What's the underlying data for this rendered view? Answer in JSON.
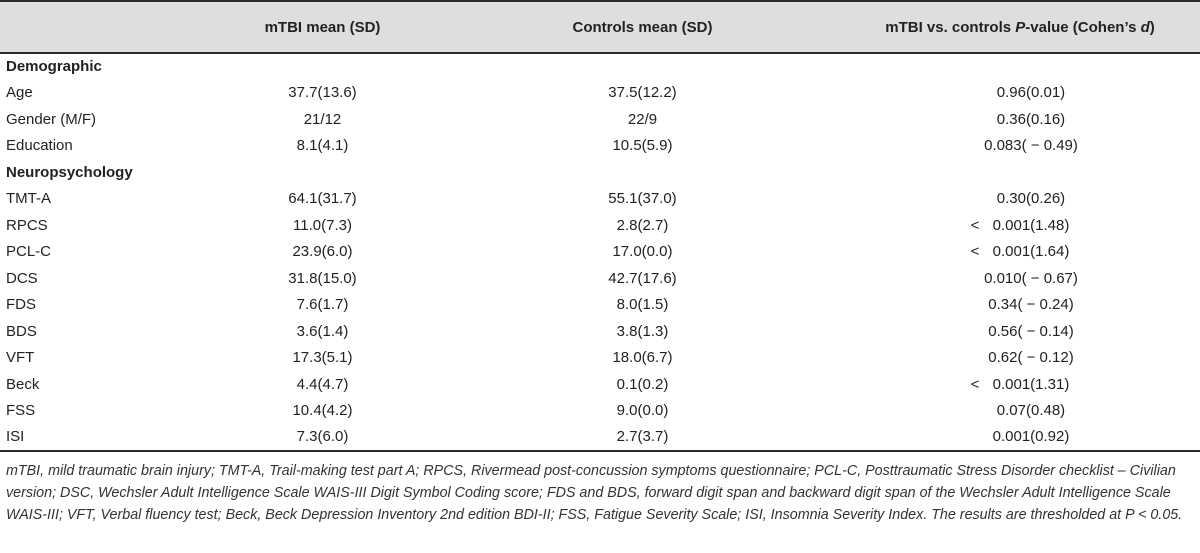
{
  "table": {
    "headers": [
      "",
      "mTBI mean (SD)",
      "Controls mean (SD)",
      "mTBI vs. controls P-value (Cohen’s d)"
    ],
    "header_p_prefix": "mTBI vs. controls ",
    "header_p_italic": "P",
    "header_p_mid": "-value (Cohen’s ",
    "header_p_italic2": "d",
    "header_p_suffix": ")",
    "sections": [
      {
        "title": "Demographic",
        "rows": [
          {
            "label": "Age",
            "mtbi": "37.7(13.6)",
            "controls": "37.5(12.2)",
            "p": "0.96(0.01)",
            "lt": ""
          },
          {
            "label": "Gender (M/F)",
            "mtbi": "21/12",
            "controls": "22/9",
            "p": "0.36(0.16)",
            "lt": ""
          },
          {
            "label": "Education",
            "mtbi": "8.1(4.1)",
            "controls": "10.5(5.9)",
            "p": "0.083( − 0.49)",
            "lt": ""
          }
        ]
      },
      {
        "title": "Neuropsychology",
        "rows": [
          {
            "label": "TMT-A",
            "mtbi": "64.1(31.7)",
            "controls": "55.1(37.0)",
            "p": "0.30(0.26)",
            "lt": ""
          },
          {
            "label": "RPCS",
            "mtbi": "11.0(7.3)",
            "controls": "2.8(2.7)",
            "p": "0.001(1.48)",
            "lt": "<"
          },
          {
            "label": "PCL-C",
            "mtbi": "23.9(6.0)",
            "controls": "17.0(0.0)",
            "p": "0.001(1.64)",
            "lt": "<"
          },
          {
            "label": "DCS",
            "mtbi": "31.8(15.0)",
            "controls": "42.7(17.6)",
            "p": "0.010( − 0.67)",
            "lt": ""
          },
          {
            "label": "FDS",
            "mtbi": "7.6(1.7)",
            "controls": "8.0(1.5)",
            "p": "0.34( − 0.24)",
            "lt": ""
          },
          {
            "label": "BDS",
            "mtbi": "3.6(1.4)",
            "controls": "3.8(1.3)",
            "p": "0.56( − 0.14)",
            "lt": ""
          },
          {
            "label": "VFT",
            "mtbi": "17.3(5.1)",
            "controls": "18.0(6.7)",
            "p": "0.62( − 0.12)",
            "lt": ""
          },
          {
            "label": "Beck",
            "mtbi": "4.4(4.7)",
            "controls": "0.1(0.2)",
            "p": "0.001(1.31)",
            "lt": "<"
          },
          {
            "label": "FSS",
            "mtbi": "10.4(4.2)",
            "controls": "9.0(0.0)",
            "p": "0.07(0.48)",
            "lt": ""
          },
          {
            "label": "ISI",
            "mtbi": "7.3(6.0)",
            "controls": "2.7(3.7)",
            "p": "0.001(0.92)",
            "lt": ""
          }
        ]
      }
    ]
  },
  "footnote": "mTBI, mild traumatic brain injury; TMT-A, Trail-making test part A; RPCS, Rivermead post-concussion symptoms questionnaire; PCL-C, Posttraumatic Stress Disorder checklist – Civilian version; DSC, Wechsler Adult Intelligence Scale WAIS-III Digit Symbol Coding score; FDS and BDS, forward digit span and backward digit span of the Wechsler Adult Intelligence Scale WAIS-III; VFT, Verbal fluency test; Beck, Beck Depression Inventory 2nd edition BDI-II; FSS, Fatigue Severity Scale; ISI, Insomnia Severity Index. The results are thresholded at P < 0.05."
}
